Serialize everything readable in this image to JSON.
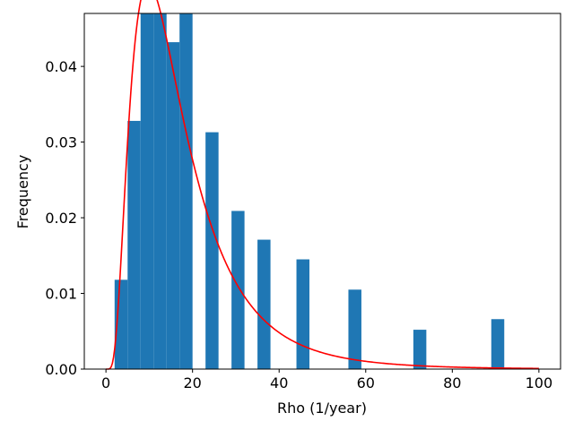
{
  "chart_data": {
    "type": "bar",
    "title": "",
    "xlabel": "Rho (1/year)",
    "ylabel": "Frequency",
    "xlim": [
      -5,
      105
    ],
    "ylim": [
      0,
      0.047
    ],
    "xticks": [
      0,
      20,
      40,
      60,
      80,
      100
    ],
    "yticks": [
      0.0,
      0.01,
      0.02,
      0.03,
      0.04
    ],
    "ytick_labels": [
      "0.00",
      "0.01",
      "0.02",
      "0.03",
      "0.04"
    ],
    "grid": false,
    "bar_color": "#1f77b4",
    "curve_color": "#ff0000",
    "histogram": {
      "bin_width": 3.0,
      "bin_starts": [
        2,
        5,
        8,
        11,
        14,
        17,
        20,
        23,
        26,
        29,
        32,
        35,
        38,
        41,
        44,
        47,
        50,
        53,
        56,
        59,
        62,
        65,
        68,
        71,
        74,
        77,
        80,
        83,
        86,
        89
      ],
      "values": [
        0.0118,
        0.0328,
        0.0473,
        0.0473,
        0.0432,
        0.0473,
        0,
        0.0313,
        0,
        0.0209,
        0,
        0.0171,
        0,
        0,
        0.0145,
        0,
        0,
        0,
        0.0105,
        0,
        0,
        0,
        0,
        0.0052,
        0,
        0,
        0,
        0,
        0,
        0.0066
      ]
    },
    "fitted_curve": {
      "type": "lognormal",
      "mu": 2.7,
      "sigma": 0.65,
      "x_range": [
        0,
        100
      ]
    }
  }
}
